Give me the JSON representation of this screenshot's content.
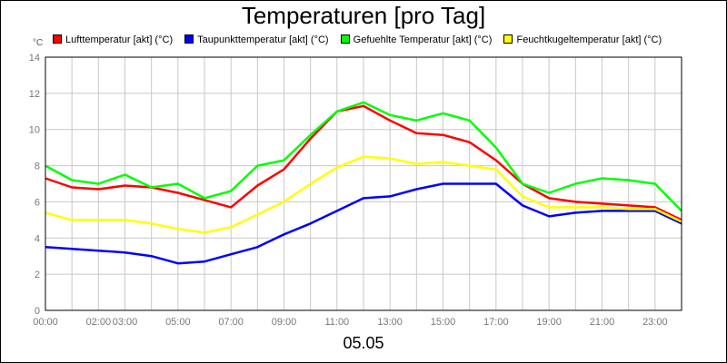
{
  "chart_data": {
    "type": "line",
    "title": "Temperaturen [pro Tag]",
    "ylabel": "°C",
    "xlabel": "05.05",
    "ylim": [
      0,
      14
    ],
    "yticks": [
      0,
      2,
      4,
      6,
      8,
      10,
      12,
      14
    ],
    "xlim": [
      0,
      24
    ],
    "xticks": [
      {
        "pos": 0,
        "label": "00:00"
      },
      {
        "pos": 2,
        "label": "02:00"
      },
      {
        "pos": 3,
        "label": "03:00"
      },
      {
        "pos": 5,
        "label": "05:00"
      },
      {
        "pos": 7,
        "label": "07:00"
      },
      {
        "pos": 9,
        "label": "09:00"
      },
      {
        "pos": 11,
        "label": "11:00"
      },
      {
        "pos": 13,
        "label": "13:00"
      },
      {
        "pos": 15,
        "label": "15:00"
      },
      {
        "pos": 17,
        "label": "17:00"
      },
      {
        "pos": 19,
        "label": "19:00"
      },
      {
        "pos": 21,
        "label": "21:00"
      },
      {
        "pos": 23,
        "label": "23:00"
      }
    ],
    "grid": true,
    "legend_position": "top",
    "series": [
      {
        "name": "Lufttemperatur [akt] (°C)",
        "color": "#ff0000",
        "x": [
          0,
          1,
          2,
          3,
          4,
          5,
          6,
          7,
          8,
          9,
          10,
          11,
          12,
          13,
          14,
          15,
          16,
          17,
          18,
          19,
          20,
          21,
          22,
          23,
          24
        ],
        "values": [
          7.3,
          6.8,
          6.7,
          6.9,
          6.8,
          6.5,
          6.1,
          5.7,
          6.9,
          7.8,
          9.5,
          11.0,
          11.3,
          10.5,
          9.8,
          9.7,
          9.3,
          8.3,
          7.0,
          6.2,
          6.0,
          5.9,
          5.8,
          5.7,
          5.0
        ]
      },
      {
        "name": "Taupunkttemperatur [akt] (°C)",
        "color": "#0000ff",
        "x": [
          0,
          1,
          2,
          3,
          4,
          5,
          6,
          7,
          8,
          9,
          10,
          11,
          12,
          13,
          14,
          15,
          16,
          17,
          18,
          19,
          20,
          21,
          22,
          23,
          24
        ],
        "values": [
          3.5,
          3.4,
          3.3,
          3.2,
          3.0,
          2.6,
          2.7,
          3.1,
          3.5,
          4.2,
          4.8,
          5.5,
          6.2,
          6.3,
          6.7,
          7.0,
          7.0,
          7.0,
          5.8,
          5.2,
          5.4,
          5.5,
          5.5,
          5.5,
          4.8
        ]
      },
      {
        "name": "Gefuehlte Temperatur [akt] (°C)",
        "color": "#00ff00",
        "x": [
          0,
          1,
          2,
          3,
          4,
          5,
          6,
          7,
          8,
          9,
          10,
          11,
          12,
          13,
          14,
          15,
          16,
          17,
          18,
          19,
          20,
          21,
          22,
          23,
          24
        ],
        "values": [
          8.0,
          7.2,
          7.0,
          7.5,
          6.8,
          7.0,
          6.2,
          6.6,
          8.0,
          8.3,
          9.7,
          11.0,
          11.5,
          10.8,
          10.5,
          10.9,
          10.5,
          9.0,
          7.0,
          6.5,
          7.0,
          7.3,
          7.2,
          7.0,
          5.5
        ]
      },
      {
        "name": "Feuchtkugeltemperatur [akt] (°C)",
        "color": "#ffff00",
        "x": [
          0,
          1,
          2,
          3,
          4,
          5,
          6,
          7,
          8,
          9,
          10,
          11,
          12,
          13,
          14,
          15,
          16,
          17,
          18,
          19,
          20,
          21,
          22,
          23,
          24
        ],
        "values": [
          5.4,
          5.0,
          5.0,
          5.0,
          4.8,
          4.5,
          4.3,
          4.6,
          5.3,
          6.0,
          7.0,
          7.9,
          8.5,
          8.4,
          8.1,
          8.2,
          8.0,
          7.8,
          6.3,
          5.7,
          5.7,
          5.7,
          5.6,
          5.6,
          4.9
        ]
      }
    ]
  }
}
